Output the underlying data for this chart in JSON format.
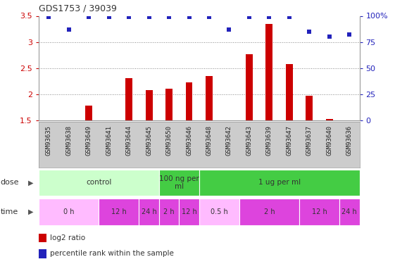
{
  "title": "GDS1753 / 39039",
  "samples": [
    "GSM93635",
    "GSM93638",
    "GSM93649",
    "GSM93641",
    "GSM93644",
    "GSM93645",
    "GSM93650",
    "GSM93646",
    "GSM93648",
    "GSM93642",
    "GSM93643",
    "GSM93639",
    "GSM93647",
    "GSM93637",
    "GSM93640",
    "GSM93636"
  ],
  "log2_ratio": [
    1.5,
    1.5,
    1.78,
    1.5,
    2.3,
    2.08,
    2.1,
    2.22,
    2.35,
    1.5,
    2.77,
    3.35,
    2.57,
    1.97,
    1.52,
    1.5
  ],
  "percentile": [
    99,
    87,
    99,
    99,
    99,
    99,
    99,
    99,
    99,
    87,
    99,
    99,
    99,
    85,
    80,
    82
  ],
  "bar_color": "#cc0000",
  "dot_color": "#2222bb",
  "ylim_left": [
    1.5,
    3.5
  ],
  "ylim_right": [
    0,
    100
  ],
  "yticks_left": [
    1.5,
    2.0,
    2.5,
    3.0,
    3.5
  ],
  "ytick_labels_left": [
    "1.5",
    "2",
    "2.5",
    "3",
    "3.5"
  ],
  "yticks_right": [
    0,
    25,
    50,
    75,
    100
  ],
  "ytick_labels_right": [
    "0",
    "25",
    "50",
    "75",
    "100%"
  ],
  "dose_groups": [
    {
      "label": "control",
      "start": 0,
      "end": 6,
      "color": "#ccffcc"
    },
    {
      "label": "100 ng per\nml",
      "start": 6,
      "end": 8,
      "color": "#44cc44"
    },
    {
      "label": "1 ug per ml",
      "start": 8,
      "end": 16,
      "color": "#44cc44"
    }
  ],
  "time_groups": [
    {
      "label": "0 h",
      "start": 0,
      "end": 3,
      "color": "#ffbbff"
    },
    {
      "label": "12 h",
      "start": 3,
      "end": 5,
      "color": "#dd44dd"
    },
    {
      "label": "24 h",
      "start": 5,
      "end": 6,
      "color": "#dd44dd"
    },
    {
      "label": "2 h",
      "start": 6,
      "end": 7,
      "color": "#dd44dd"
    },
    {
      "label": "12 h",
      "start": 7,
      "end": 8,
      "color": "#dd44dd"
    },
    {
      "label": "0.5 h",
      "start": 8,
      "end": 10,
      "color": "#ffbbff"
    },
    {
      "label": "2 h",
      "start": 10,
      "end": 13,
      "color": "#dd44dd"
    },
    {
      "label": "12 h",
      "start": 13,
      "end": 15,
      "color": "#dd44dd"
    },
    {
      "label": "24 h",
      "start": 15,
      "end": 16,
      "color": "#dd44dd"
    }
  ],
  "baseline": 1.5,
  "legend_items": [
    {
      "color": "#cc0000",
      "label": "log2 ratio"
    },
    {
      "color": "#2222bb",
      "label": "percentile rank within the sample"
    }
  ],
  "bg_color": "#ffffff",
  "grid_color": "#888888",
  "tick_color_left": "#cc0000",
  "tick_color_right": "#2222bb",
  "sample_bg": "#cccccc",
  "border_color": "#999999"
}
